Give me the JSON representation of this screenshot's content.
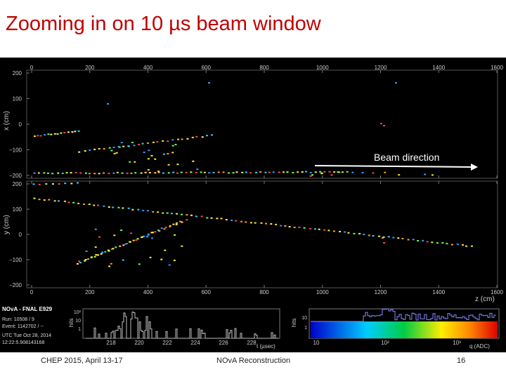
{
  "slide": {
    "title": "Zooming in on 10 µs beam window",
    "footer_left": "CHEP 2015, April 13-17",
    "footer_center": "NOvA Reconstruction",
    "page_number": "16"
  },
  "annotation": {
    "label": "Beam direction",
    "arrow_color": "#ffffff",
    "label_color": "#ffffff"
  },
  "event_info": {
    "experiment": "NOvA - FNAL E929",
    "run": "Run:   10508 / 9",
    "event": "Event: 1142702 / --",
    "utc_date": "UTC Tue Oct 28, 2014",
    "utc_time": "12:22:5.908143168"
  },
  "chart_data": [
    {
      "type": "scatter",
      "name": "top-view",
      "xlabel": "",
      "ylabel": "x (cm)",
      "xlim": [
        0,
        1600
      ],
      "ylim": [
        -200,
        200
      ],
      "xticks": [
        "0",
        "200",
        "400",
        "600",
        "800",
        "1000",
        "1200",
        "1400",
        "1600"
      ],
      "yticks": [
        "200",
        "100",
        "0",
        "−100",
        "−200"
      ]
    },
    {
      "type": "scatter",
      "name": "side-view",
      "xlabel": "z (cm)",
      "ylabel": "y (cm)",
      "xlim": [
        0,
        1600
      ],
      "ylim": [
        -200,
        200
      ],
      "xticks": [
        "0",
        "200",
        "400",
        "600",
        "800",
        "1000",
        "1200",
        "1400",
        "1600"
      ],
      "yticks": [
        "200",
        "100",
        "0",
        "−100",
        "−200"
      ]
    },
    {
      "type": "bar",
      "name": "time-histogram",
      "xlabel": "t (µsec)",
      "ylabel": "hits",
      "xticks": [
        "218",
        "220",
        "222",
        "224",
        "226",
        "228"
      ],
      "yticks": [
        "10²",
        "10",
        "1"
      ],
      "xlim": [
        216,
        230
      ]
    },
    {
      "type": "bar",
      "name": "charge-histogram",
      "xlabel": "q (ADC)",
      "ylabel": "hits",
      "xticks": [
        "10",
        "10²",
        "10³"
      ],
      "yticks": [
        "10",
        "1"
      ]
    }
  ]
}
